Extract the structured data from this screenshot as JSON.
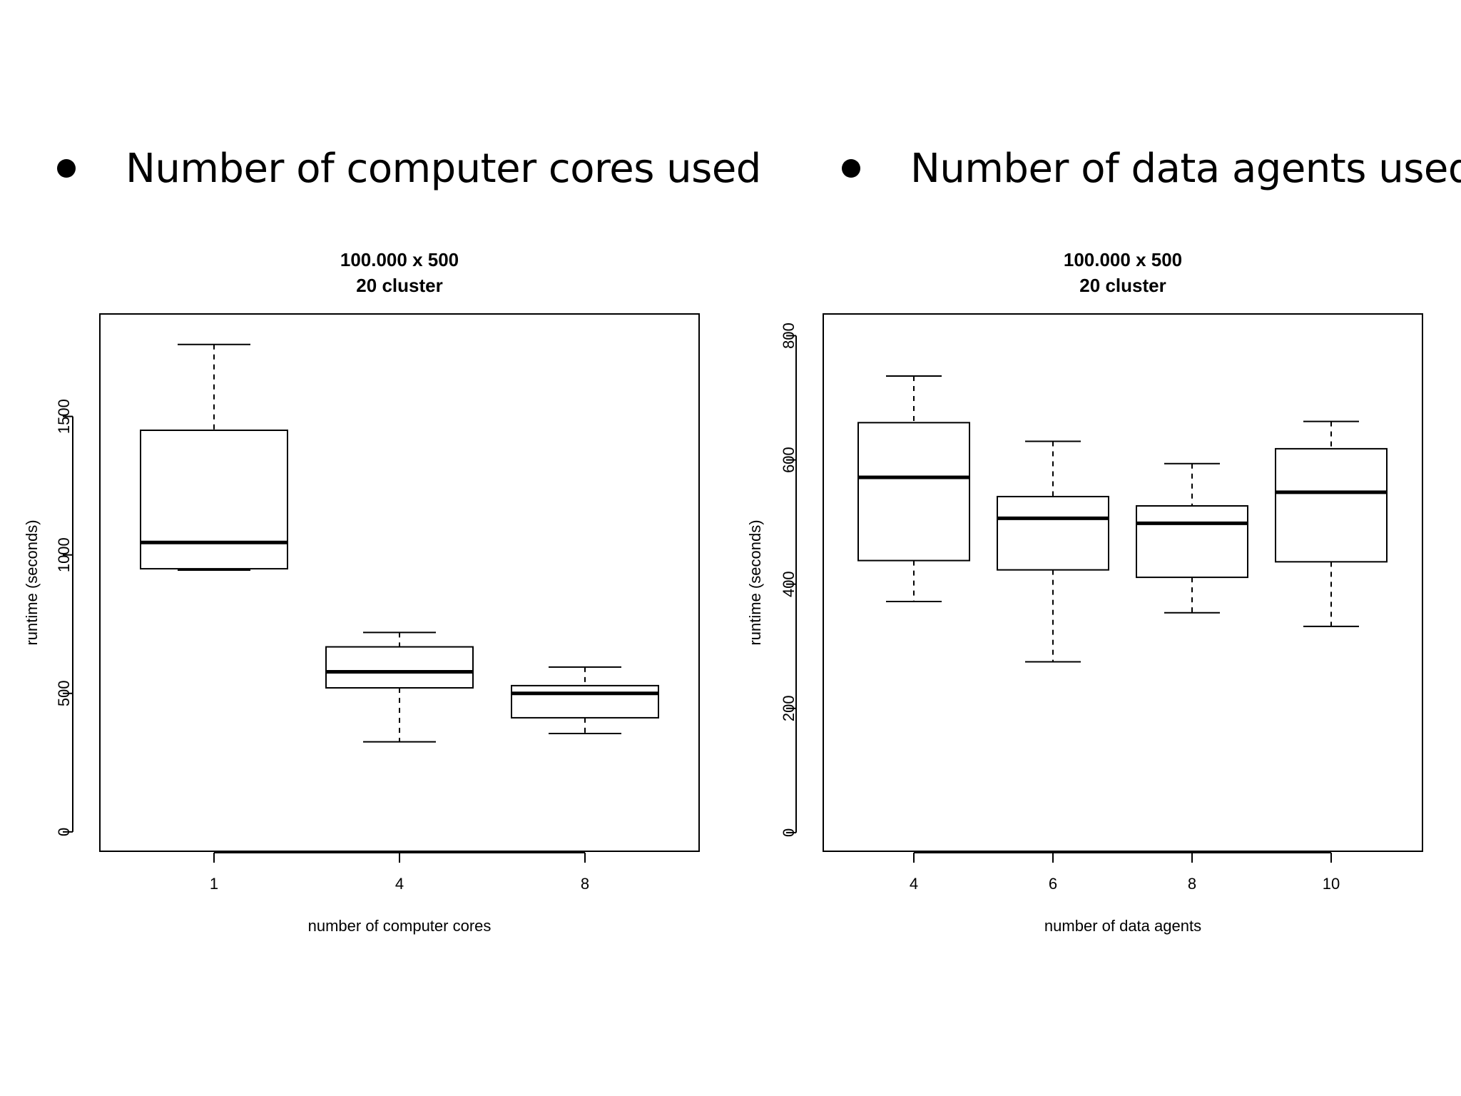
{
  "bullets": [
    {
      "text": "Number of computer cores used"
    },
    {
      "text": "Number of data agents used"
    }
  ],
  "chart_data": [
    {
      "type": "boxplot",
      "title": [
        "100.000 x 500",
        "20 cluster"
      ],
      "xlabel": "number of computer cores",
      "ylabel": "runtime (seconds)",
      "categories": [
        "1",
        "4",
        "8"
      ],
      "yticks": [
        0,
        500,
        1000,
        1500
      ],
      "ylim": [
        -70,
        1870
      ],
      "grid": false,
      "boxes": [
        {
          "category": "1",
          "lower_whisker": 945,
          "q1": 950,
          "median": 1045,
          "q3": 1450,
          "upper_whisker": 1760
        },
        {
          "category": "4",
          "lower_whisker": 325,
          "q1": 520,
          "median": 578,
          "q3": 668,
          "upper_whisker": 720
        },
        {
          "category": "8",
          "lower_whisker": 355,
          "q1": 412,
          "median": 500,
          "q3": 528,
          "upper_whisker": 595
        }
      ]
    },
    {
      "type": "boxplot",
      "title": [
        "100.000 x 500",
        "20 cluster"
      ],
      "xlabel": "number of data agents",
      "ylabel": "runtime (seconds)",
      "categories": [
        "4",
        "6",
        "8",
        "10"
      ],
      "yticks": [
        0,
        200,
        400,
        600,
        800
      ],
      "ylim": [
        -30,
        835
      ],
      "grid": false,
      "boxes": [
        {
          "category": "4",
          "lower_whisker": 372,
          "q1": 438,
          "median": 572,
          "q3": 660,
          "upper_whisker": 735
        },
        {
          "category": "6",
          "lower_whisker": 275,
          "q1": 423,
          "median": 506,
          "q3": 541,
          "upper_whisker": 630
        },
        {
          "category": "8",
          "lower_whisker": 354,
          "q1": 411,
          "median": 498,
          "q3": 526,
          "upper_whisker": 594
        },
        {
          "category": "10",
          "lower_whisker": 332,
          "q1": 436,
          "median": 548,
          "q3": 618,
          "upper_whisker": 662
        }
      ]
    }
  ]
}
